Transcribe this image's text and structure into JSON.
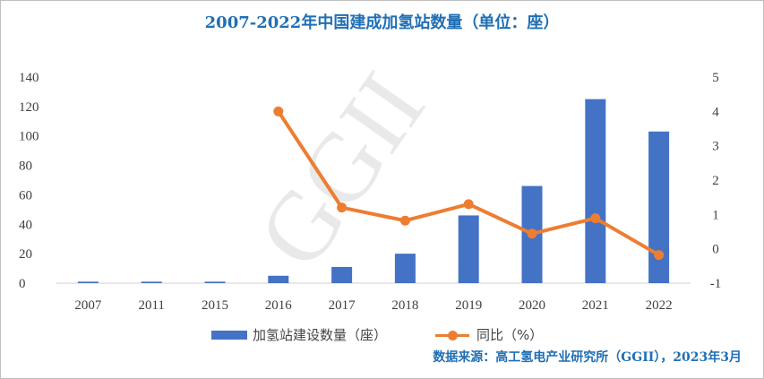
{
  "title": "2007-2022年中国建成加氢站数量（单位：座）",
  "watermark": "GGII",
  "source": "数据来源：高工氢电产业研究所（GGII），2023年3月",
  "colors": {
    "bar": "#4472c4",
    "line": "#ed7d31",
    "title": "#1f6fb4",
    "axis_text": "#404040"
  },
  "chart_data": {
    "type": "bar",
    "categories": [
      "2007",
      "2011",
      "2015",
      "2016",
      "2017",
      "2018",
      "2019",
      "2020",
      "2021",
      "2022"
    ],
    "series": [
      {
        "name": "加氢站建设数量（座）",
        "type": "bar",
        "axis": "left",
        "values": [
          1,
          1,
          1,
          5,
          11,
          20,
          46,
          66,
          125,
          103
        ]
      },
      {
        "name": "同比（%）",
        "type": "line",
        "axis": "right",
        "values": [
          null,
          null,
          null,
          4.0,
          1.2,
          0.82,
          1.3,
          0.44,
          0.89,
          -0.18
        ]
      }
    ],
    "y_left": {
      "ylim": [
        0,
        140
      ],
      "ticks": [
        0,
        20,
        40,
        60,
        80,
        100,
        120,
        140
      ]
    },
    "y_right": {
      "ylim": [
        -1,
        5
      ],
      "ticks": [
        -1,
        0,
        1,
        2,
        3,
        4,
        5
      ]
    },
    "grid": false,
    "legend_position": "bottom"
  }
}
